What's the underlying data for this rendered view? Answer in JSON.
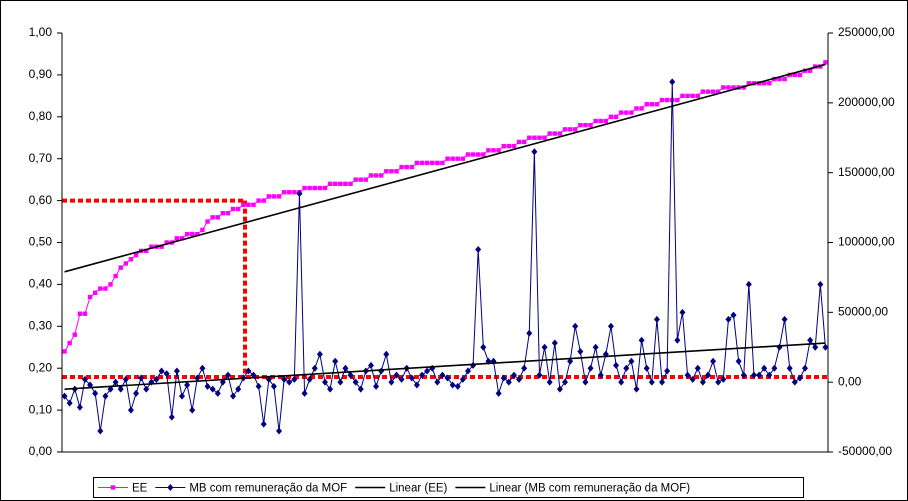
{
  "chart_data": {
    "type": "line",
    "ylim": [
      0,
      1
    ],
    "yticks": [
      {
        "value": 0,
        "label": "0,00"
      },
      {
        "value": 0.1,
        "label": "0,10"
      },
      {
        "value": 0.2,
        "label": "0,20"
      },
      {
        "value": 0.3,
        "label": "0,30"
      },
      {
        "value": 0.4,
        "label": "0,40"
      },
      {
        "value": 0.5,
        "label": "0,50"
      },
      {
        "value": 0.6,
        "label": "0,60"
      },
      {
        "value": 0.7,
        "label": "0,70"
      },
      {
        "value": 0.8,
        "label": "0,80"
      },
      {
        "value": 0.9,
        "label": "0,90"
      },
      {
        "value": 1,
        "label": "1,00"
      }
    ],
    "y2lim": [
      -50000,
      250000
    ],
    "y2ticks": [
      {
        "value": -50000,
        "label": "-50000,00"
      },
      {
        "value": 0,
        "label": "0,00"
      },
      {
        "value": 50000,
        "label": "50000,00"
      },
      {
        "value": 100000,
        "label": "100000,00"
      },
      {
        "value": 150000,
        "label": "150000,00"
      },
      {
        "value": 200000,
        "label": "200000,00"
      },
      {
        "value": 250000,
        "label": "250000,00"
      }
    ],
    "series": [
      {
        "name": "EE",
        "color": "#ff00ff",
        "marker": "square",
        "values": [
          0.24,
          0.26,
          0.28,
          0.33,
          0.33,
          0.37,
          0.38,
          0.39,
          0.39,
          0.4,
          0.42,
          0.44,
          0.45,
          0.46,
          0.47,
          0.48,
          0.48,
          0.49,
          0.49,
          0.49,
          0.5,
          0.5,
          0.51,
          0.51,
          0.52,
          0.52,
          0.52,
          0.53,
          0.55,
          0.56,
          0.56,
          0.57,
          0.57,
          0.58,
          0.58,
          0.59,
          0.59,
          0.59,
          0.6,
          0.6,
          0.61,
          0.61,
          0.61,
          0.62,
          0.62,
          0.62,
          0.62,
          0.63,
          0.63,
          0.63,
          0.63,
          0.63,
          0.64,
          0.64,
          0.64,
          0.64,
          0.64,
          0.65,
          0.65,
          0.65,
          0.66,
          0.66,
          0.66,
          0.67,
          0.67,
          0.67,
          0.68,
          0.68,
          0.68,
          0.69,
          0.69,
          0.69,
          0.69,
          0.69,
          0.69,
          0.7,
          0.7,
          0.7,
          0.7,
          0.71,
          0.71,
          0.71,
          0.71,
          0.72,
          0.72,
          0.72,
          0.73,
          0.73,
          0.73,
          0.74,
          0.74,
          0.75,
          0.75,
          0.75,
          0.75,
          0.76,
          0.76,
          0.76,
          0.77,
          0.77,
          0.77,
          0.78,
          0.78,
          0.78,
          0.79,
          0.79,
          0.79,
          0.8,
          0.8,
          0.81,
          0.81,
          0.81,
          0.82,
          0.82,
          0.83,
          0.83,
          0.83,
          0.84,
          0.84,
          0.84,
          0.84,
          0.85,
          0.85,
          0.85,
          0.85,
          0.86,
          0.86,
          0.86,
          0.86,
          0.87,
          0.87,
          0.87,
          0.87,
          0.87,
          0.88,
          0.88,
          0.88,
          0.88,
          0.88,
          0.89,
          0.89,
          0.89,
          0.9,
          0.9,
          0.9,
          0.91,
          0.91,
          0.92,
          0.92,
          0.93
        ]
      },
      {
        "name": "MB com remuneração da MOF",
        "color": "#000080",
        "marker": "diamond",
        "axis": "y2",
        "values": [
          -10000,
          -15000,
          -5000,
          -18000,
          2000,
          -2000,
          -8000,
          -35000,
          -10000,
          -5000,
          0,
          -5000,
          2000,
          -20000,
          -8000,
          3000,
          -5000,
          0,
          2000,
          8000,
          6000,
          -25000,
          8000,
          -10000,
          -2000,
          -20000,
          3000,
          10000,
          -3000,
          -5000,
          -8000,
          0,
          5000,
          -10000,
          -5000,
          3000,
          8000,
          5000,
          -3000,
          -30000,
          2000,
          -3000,
          -35000,
          2000,
          0,
          2000,
          135000,
          -8000,
          2000,
          10000,
          20000,
          0,
          -5000,
          15000,
          0,
          10000,
          5000,
          0,
          -5000,
          8000,
          12000,
          -3000,
          8000,
          20000,
          0,
          5000,
          2000,
          10000,
          3000,
          -2000,
          5000,
          8000,
          10000,
          0,
          5000,
          3000,
          -2000,
          -3000,
          2000,
          8000,
          12000,
          95000,
          25000,
          15000,
          15000,
          -8000,
          3000,
          0,
          5000,
          2000,
          10000,
          35000,
          165000,
          5000,
          25000,
          0,
          28000,
          -5000,
          0,
          15000,
          40000,
          22000,
          0,
          10000,
          25000,
          5000,
          20000,
          40000,
          12000,
          0,
          10000,
          15000,
          -5000,
          30000,
          10000,
          0,
          45000,
          0,
          8000,
          215000,
          30000,
          50000,
          5000,
          2000,
          10000,
          0,
          5000,
          15000,
          0,
          2000,
          45000,
          48000,
          15000,
          5000,
          70000,
          5000,
          5000,
          10000,
          5000,
          10000,
          25000,
          45000,
          10000,
          0,
          3000,
          10000,
          30000,
          25000,
          70000,
          25000
        ]
      },
      {
        "name": "Linear (EE)",
        "color": "#000000",
        "trend": true,
        "values": [
          0.43,
          0.925
        ]
      },
      {
        "name": "Linear (MB com remuneração da MOF)",
        "color": "#000000",
        "trend": true,
        "axis": "y2",
        "values": [
          -5000,
          28000
        ]
      }
    ]
  }
}
